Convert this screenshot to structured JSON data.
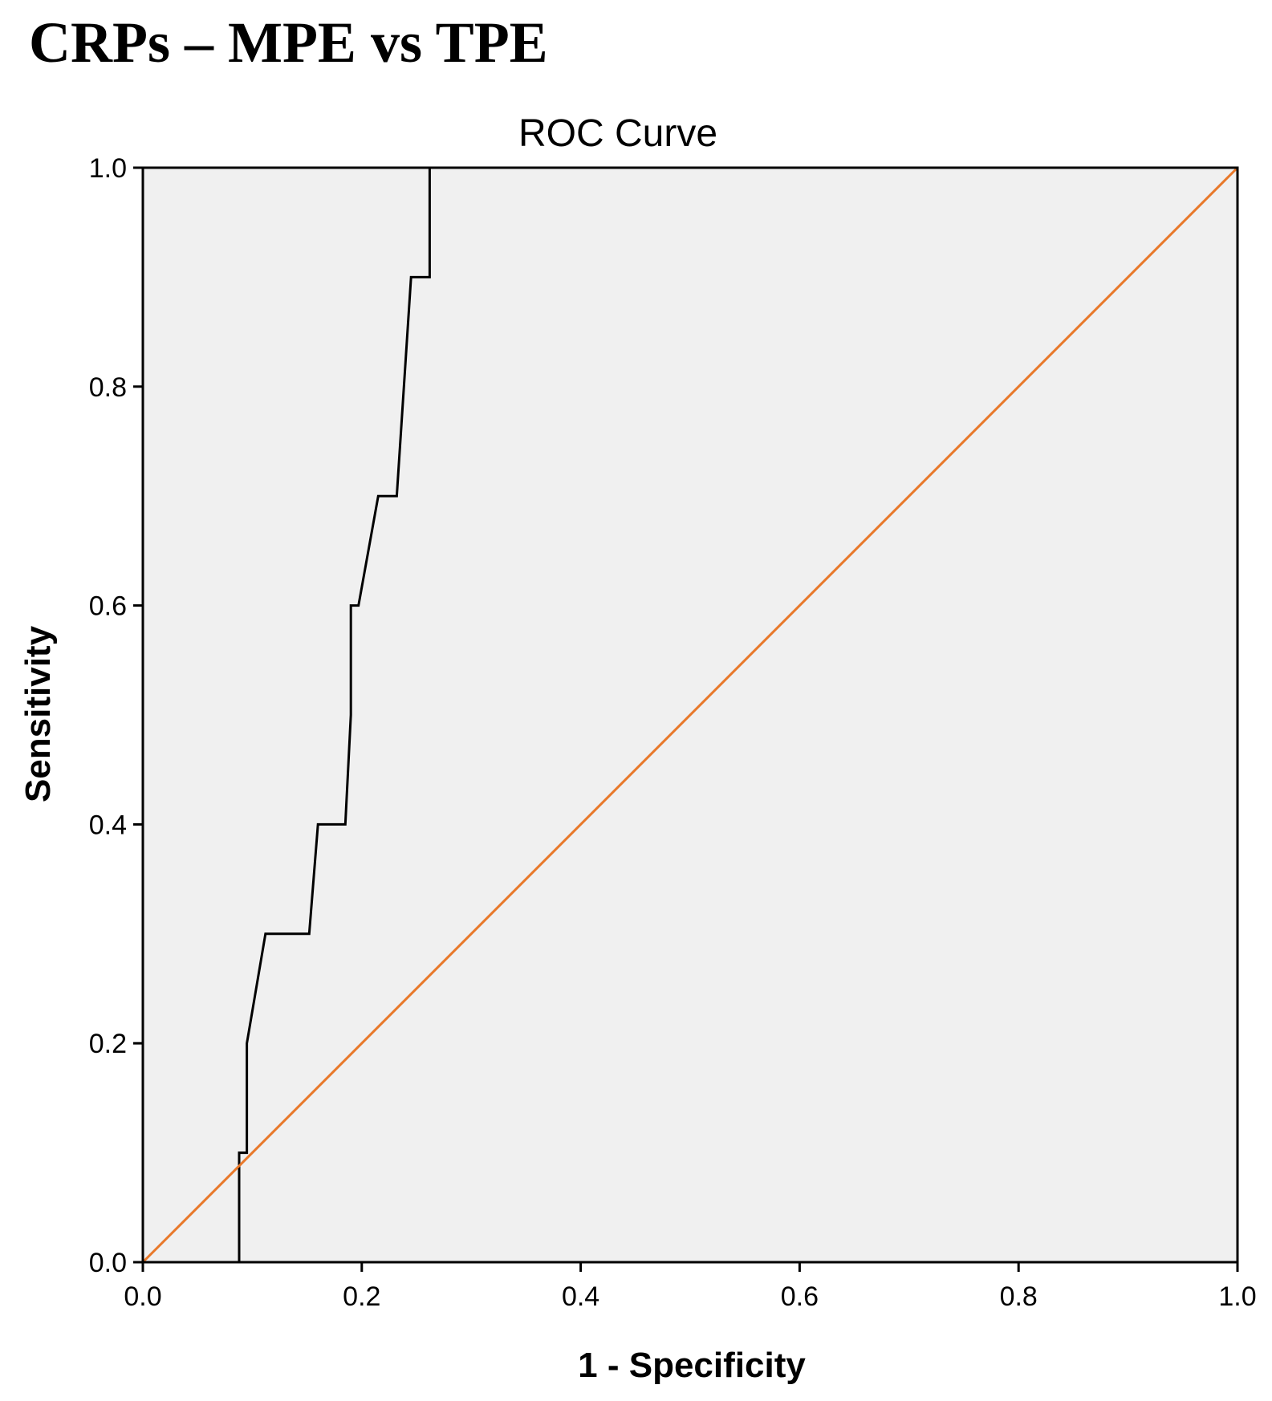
{
  "figure_title": "CRPs – MPE vs TPE",
  "chart_data": {
    "type": "line",
    "title": "ROC Curve",
    "xlabel": "1 - Specificity",
    "ylabel": "Sensitivity",
    "xlim": [
      0,
      1
    ],
    "ylim": [
      0,
      1
    ],
    "xticks": [
      "0.0",
      "0.2",
      "0.4",
      "0.6",
      "0.8",
      "1.0"
    ],
    "yticks": [
      "0.0",
      "0.2",
      "0.4",
      "0.6",
      "0.8",
      "1.0"
    ],
    "grid": false,
    "background": "#f0f0f0",
    "series": [
      {
        "color": "#000000",
        "x": [
          0,
          0.088,
          0.088,
          0.095,
          0.095,
          0.112,
          0.152,
          0.16,
          0.185,
          0.19,
          0.19,
          0.197,
          0.215,
          0.232,
          0.245,
          0.262,
          0.262,
          1.0
        ],
        "y": [
          0,
          0,
          0.1,
          0.1,
          0.2,
          0.3,
          0.3,
          0.4,
          0.4,
          0.5,
          0.6,
          0.6,
          0.7,
          0.7,
          0.9,
          0.9,
          1.0,
          1.0
        ]
      },
      {
        "color": "#e8782a",
        "x": [
          0,
          1
        ],
        "y": [
          0,
          1
        ]
      }
    ]
  }
}
